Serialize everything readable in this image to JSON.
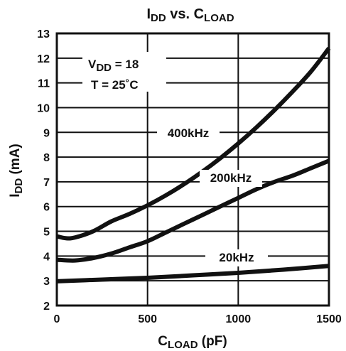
{
  "chart_data": {
    "type": "line",
    "title": {
      "main": "I",
      "sub": "DD",
      "mid": " vs. C",
      "sub2": "LOAD"
    },
    "xlabel": {
      "main": "C",
      "sub": "LOAD",
      "rest": " (pF)"
    },
    "ylabel": {
      "main": "I",
      "sub": "DD",
      "rest": " (mA)"
    },
    "xlim": [
      0,
      1500
    ],
    "ylim": [
      2,
      13
    ],
    "xticks": [
      "0",
      "500",
      "1000",
      "1500"
    ],
    "yticks": [
      "2",
      "3",
      "4",
      "5",
      "6",
      "7",
      "8",
      "9",
      "10",
      "11",
      "12",
      "13"
    ],
    "grid": true,
    "annotations": {
      "vdd": {
        "main": "V",
        "sub": "DD",
        "rest": " = 18"
      },
      "temp": "T = 25˚C"
    },
    "series": [
      {
        "name": "400kHz",
        "x": [
          0,
          50,
          100,
          200,
          300,
          400,
          500,
          600,
          700,
          800,
          900,
          1000,
          1100,
          1200,
          1300,
          1400,
          1500
        ],
        "y": [
          4.8,
          4.72,
          4.75,
          5.0,
          5.4,
          5.7,
          6.05,
          6.45,
          6.9,
          7.4,
          7.95,
          8.55,
          9.2,
          9.9,
          10.65,
          11.45,
          12.4
        ]
      },
      {
        "name": "200kHz",
        "x": [
          0,
          100,
          200,
          300,
          400,
          500,
          600,
          700,
          800,
          900,
          1000,
          1100,
          1200,
          1300,
          1400,
          1500
        ],
        "y": [
          3.85,
          3.82,
          3.92,
          4.1,
          4.35,
          4.6,
          4.95,
          5.3,
          5.65,
          6.0,
          6.35,
          6.7,
          7.0,
          7.25,
          7.55,
          7.85
        ]
      },
      {
        "name": "20kHz",
        "x": [
          0,
          250,
          500,
          750,
          1000,
          1250,
          1500
        ],
        "y": [
          2.98,
          3.05,
          3.12,
          3.22,
          3.32,
          3.45,
          3.6
        ]
      }
    ]
  }
}
